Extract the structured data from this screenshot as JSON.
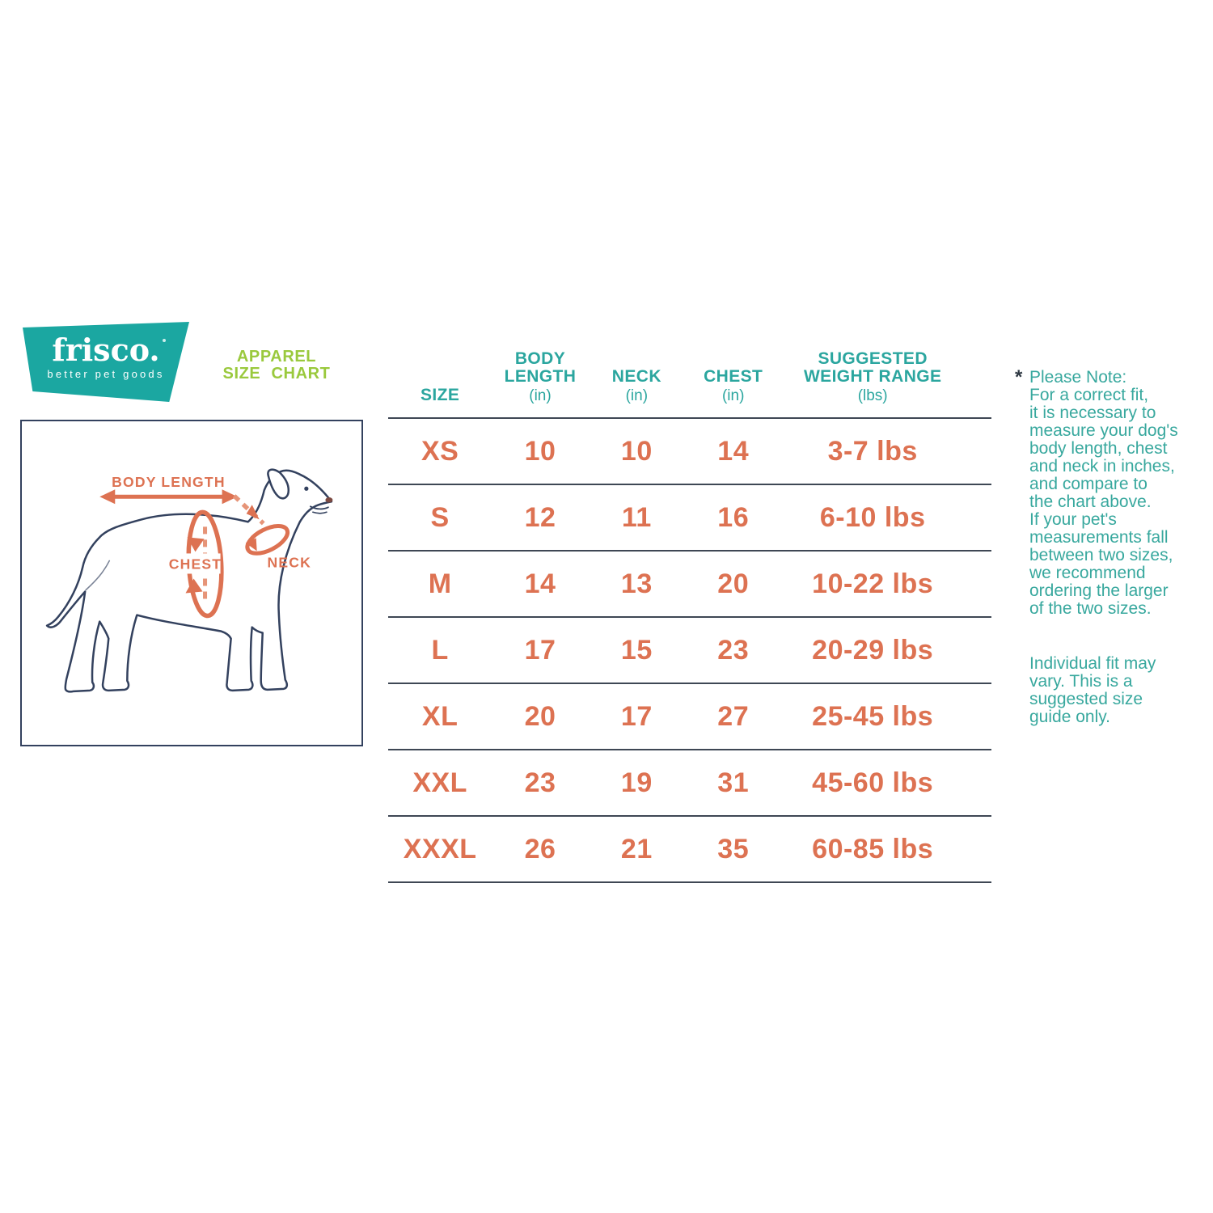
{
  "colors": {
    "teal_banner": "#1BA7A1",
    "teal_text": "#2BA69F",
    "green_title": "#9AC93D",
    "orange_data": "#DD7252",
    "note_teal": "#38A89E",
    "table_line": "#3E4754",
    "dog_outline": "#33415E"
  },
  "brand": {
    "name": "frisco.",
    "tagline": "better pet goods"
  },
  "title": {
    "line1": "APPAREL",
    "line2": "SIZE CHART"
  },
  "diagram": {
    "body_length_label": "BODY LENGTH",
    "chest_label": "CHEST",
    "neck_label": "NECK"
  },
  "chart_data": {
    "type": "table",
    "columns": [
      {
        "label": "SIZE",
        "unit": ""
      },
      {
        "label": "BODY LENGTH",
        "unit": "(in)"
      },
      {
        "label": "NECK",
        "unit": "(in)"
      },
      {
        "label": "CHEST",
        "unit": "(in)"
      },
      {
        "label": "SUGGESTED WEIGHT RANGE",
        "unit": "(lbs)"
      }
    ],
    "rows": [
      [
        "XS",
        "10",
        "10",
        "14",
        "3-7 lbs"
      ],
      [
        "S",
        "12",
        "11",
        "16",
        "6-10 lbs"
      ],
      [
        "M",
        "14",
        "13",
        "20",
        "10-22 lbs"
      ],
      [
        "L",
        "17",
        "15",
        "23",
        "20-29 lbs"
      ],
      [
        "XL",
        "20",
        "17",
        "27",
        "25-45 lbs"
      ],
      [
        "XXL",
        "23",
        "19",
        "31",
        "45-60 lbs"
      ],
      [
        "XXXL",
        "26",
        "21",
        "35",
        "60-85 lbs"
      ]
    ]
  },
  "note": {
    "asterisk": "*",
    "primary": "Please Note:\nFor a correct fit,\nit is necessary to\nmeasure your dog's\nbody length, chest\nand neck in inches,\nand compare to\nthe chart above.\nIf your pet's\nmeasurements fall\nbetween two sizes,\nwe recommend\nordering the larger\nof the two sizes.",
    "secondary": "Individual fit may\nvary. This is a\nsuggested size\nguide only."
  }
}
